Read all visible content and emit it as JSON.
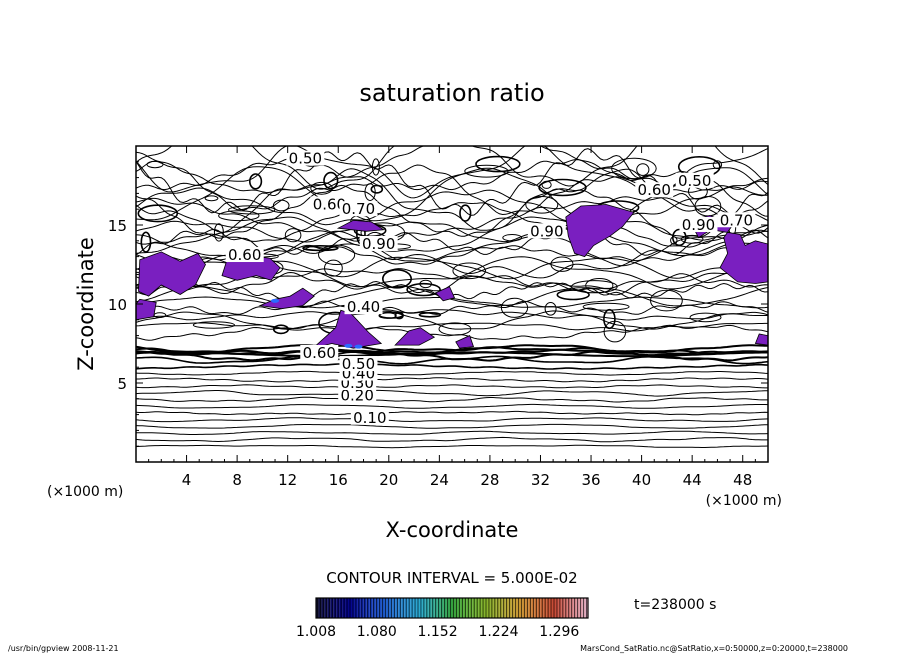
{
  "chart_data": {
    "type": "contour",
    "title": "saturation ratio",
    "xlabel": "X-coordinate",
    "ylabel": "Z-coordinate",
    "x_unit": "(×1000 m)",
    "y_unit": "(×1000 m)",
    "xlim": [
      0,
      50
    ],
    "ylim": [
      0,
      20
    ],
    "x_ticks": [
      "4",
      "8",
      "12",
      "16",
      "20",
      "24",
      "28",
      "32",
      "36",
      "40",
      "44",
      "48"
    ],
    "y_ticks": [
      "5",
      "10",
      "15"
    ],
    "contour_interval": "CONTOUR INTERVAL = 5.000E-02",
    "time_label": "t=238000 s",
    "colorbar": {
      "ticks": [
        "1.008",
        "1.080",
        "1.152",
        "1.224",
        "1.296"
      ],
      "min": 1.008,
      "max": 1.33
    },
    "contour_labels": [
      {
        "text": "0.10",
        "x": 18.5,
        "z": 2.8
      },
      {
        "text": "0.20",
        "x": 17.5,
        "z": 4.2
      },
      {
        "text": "0.30",
        "x": 17.5,
        "z": 5.0
      },
      {
        "text": "0.40",
        "x": 17.6,
        "z": 5.6
      },
      {
        "text": "0.50",
        "x": 17.6,
        "z": 6.2
      },
      {
        "text": "0.60",
        "x": 14.5,
        "z": 6.9
      },
      {
        "text": "0.40",
        "x": 18.0,
        "z": 9.8
      },
      {
        "text": "0.60",
        "x": 8.6,
        "z": 13.1
      },
      {
        "text": "0.90",
        "x": 19.2,
        "z": 13.8
      },
      {
        "text": "0.90",
        "x": 32.5,
        "z": 14.6
      },
      {
        "text": "0.60",
        "x": 15.3,
        "z": 16.3
      },
      {
        "text": "0.70",
        "x": 17.6,
        "z": 16.0
      },
      {
        "text": "0.60",
        "x": 41.0,
        "z": 17.2
      },
      {
        "text": "0.50",
        "x": 44.2,
        "z": 17.8
      },
      {
        "text": "0.70",
        "x": 47.5,
        "z": 15.3
      },
      {
        "text": "0.90",
        "x": 44.5,
        "z": 15.0
      },
      {
        "text": "0.50",
        "x": 13.4,
        "z": 19.2
      }
    ],
    "supersaturated_regions": [
      [
        [
          0.2,
          10.8
        ],
        [
          0.3,
          12.8
        ],
        [
          2.0,
          13.3
        ],
        [
          3.5,
          12.7
        ],
        [
          4.9,
          13.2
        ],
        [
          5.5,
          12.5
        ],
        [
          4.7,
          11.2
        ],
        [
          3.5,
          10.6
        ],
        [
          2.0,
          11.2
        ],
        [
          1.0,
          10.5
        ]
      ],
      [
        [
          6.8,
          11.8
        ],
        [
          7.2,
          12.8
        ],
        [
          8.6,
          13.1
        ],
        [
          10.6,
          12.9
        ],
        [
          11.4,
          12.3
        ],
        [
          10.7,
          11.5
        ],
        [
          9.5,
          11.8
        ],
        [
          8.0,
          11.5
        ]
      ],
      [
        [
          9.8,
          9.9
        ],
        [
          11.0,
          10.3
        ],
        [
          12.2,
          10.5
        ],
        [
          13.2,
          11.0
        ],
        [
          14.1,
          10.5
        ],
        [
          13.2,
          9.9
        ],
        [
          11.5,
          9.7
        ]
      ],
      [
        [
          0.0,
          9.0
        ],
        [
          1.4,
          9.2
        ],
        [
          1.6,
          10.1
        ],
        [
          0.3,
          10.3
        ],
        [
          0.0,
          10.0
        ]
      ],
      [
        [
          14.0,
          7.2
        ],
        [
          15.8,
          8.5
        ],
        [
          16.2,
          9.6
        ],
        [
          17.0,
          9.4
        ],
        [
          18.4,
          8.2
        ],
        [
          19.4,
          7.5
        ],
        [
          17.2,
          7.2
        ],
        [
          15.5,
          7.5
        ]
      ],
      [
        [
          16.0,
          14.8
        ],
        [
          17.2,
          15.3
        ],
        [
          18.6,
          15.2
        ],
        [
          19.6,
          14.7
        ],
        [
          18.2,
          14.6
        ]
      ],
      [
        [
          20.5,
          7.4
        ],
        [
          21.6,
          8.3
        ],
        [
          22.5,
          8.5
        ],
        [
          23.6,
          7.9
        ],
        [
          22.4,
          7.4
        ]
      ],
      [
        [
          25.3,
          7.6
        ],
        [
          26.4,
          8.0
        ],
        [
          26.7,
          7.3
        ],
        [
          25.6,
          7.2
        ]
      ],
      [
        [
          23.7,
          10.7
        ],
        [
          24.8,
          11.1
        ],
        [
          25.2,
          10.4
        ],
        [
          24.3,
          10.2
        ]
      ],
      [
        [
          34.0,
          15.5
        ],
        [
          35.2,
          16.2
        ],
        [
          37.2,
          16.3
        ],
        [
          39.4,
          15.8
        ],
        [
          38.5,
          14.9
        ],
        [
          37.5,
          14.3
        ],
        [
          36.2,
          13.7
        ],
        [
          35.5,
          13.0
        ],
        [
          34.7,
          13.2
        ],
        [
          34.2,
          14.3
        ]
      ],
      [
        [
          43.8,
          15.3
        ],
        [
          45.4,
          15.6
        ],
        [
          47.2,
          15.0
        ],
        [
          46.5,
          14.2
        ],
        [
          46.8,
          13.2
        ],
        [
          46.2,
          12.3
        ],
        [
          47.6,
          11.4
        ],
        [
          49.0,
          11.3
        ],
        [
          50.0,
          11.4
        ],
        [
          50.0,
          13.8
        ],
        [
          49.0,
          14.0
        ],
        [
          48.2,
          13.7
        ],
        [
          47.8,
          14.4
        ],
        [
          45.5,
          14.7
        ],
        [
          44.5,
          14.2
        ]
      ],
      [
        [
          49.0,
          7.5
        ],
        [
          50.0,
          7.4
        ],
        [
          50.0,
          8.0
        ],
        [
          49.3,
          8.1
        ]
      ]
    ],
    "grid": false,
    "legend": "bottom-center colorbar"
  },
  "footer": {
    "left": "/usr/bin/gpview  2008-11-21",
    "right": "MarsCond_SatRatio.nc@SatRatio,x=0:50000,z=0:20000,t=238000"
  },
  "colors": {
    "supersaturated": "#7a1fc0",
    "core_blue": "#2a6bff",
    "contour": "#000000"
  }
}
